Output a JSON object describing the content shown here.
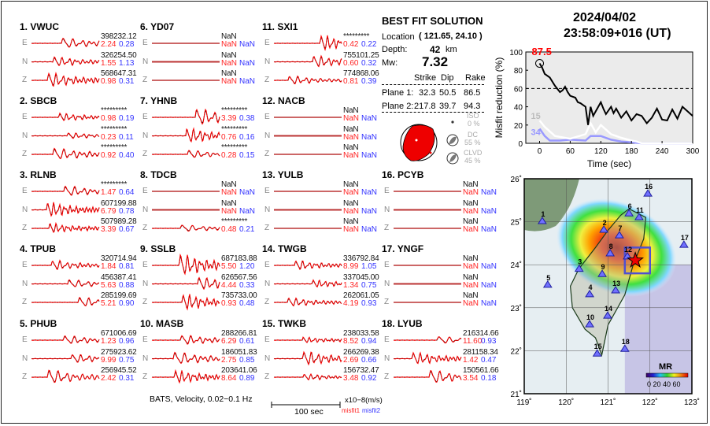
{
  "stations": [
    {
      "label": "1.  VWUC",
      "traces": [
        {
          "comp": "E",
          "amp": "398232.12",
          "m1": "2.24",
          "m2": "0.28"
        },
        {
          "comp": "N",
          "amp": "326254.50",
          "m1": "1.55",
          "m2": "1.13"
        },
        {
          "comp": "Z",
          "amp": "568647.31",
          "m1": "0.98",
          "m2": "0.31"
        }
      ]
    },
    {
      "label": "2.  SBCB",
      "traces": [
        {
          "comp": "E",
          "amp": "*********",
          "m1": "0.98",
          "m2": "0.19"
        },
        {
          "comp": "N",
          "amp": "*********",
          "m1": "0.23",
          "m2": "0.11"
        },
        {
          "comp": "Z",
          "amp": "*********",
          "m1": "0.92",
          "m2": "0.40"
        }
      ]
    },
    {
      "label": "3.  RLNB",
      "traces": [
        {
          "comp": "E",
          "amp": "*********",
          "m1": "1.47",
          "m2": "0.64"
        },
        {
          "comp": "N",
          "amp": "607199.88",
          "m1": "6.79",
          "m2": "0.78"
        },
        {
          "comp": "Z",
          "amp": "507989.28",
          "m1": "3.39",
          "m2": "0.67"
        }
      ]
    },
    {
      "label": "4.  TPUB",
      "traces": [
        {
          "comp": "E",
          "amp": "320714.94",
          "m1": "1.84",
          "m2": "0.81"
        },
        {
          "comp": "N",
          "amp": "456387.41",
          "m1": "5.63",
          "m2": "0.88"
        },
        {
          "comp": "Z",
          "amp": "285199.69",
          "m1": "5.21",
          "m2": "0.90"
        }
      ]
    },
    {
      "label": "5.  PHUB",
      "traces": [
        {
          "comp": "E",
          "amp": "671006.69",
          "m1": "1.23",
          "m2": "0.96"
        },
        {
          "comp": "N",
          "amp": "275923.62",
          "m1": "9.99",
          "m2": "0.75"
        },
        {
          "comp": "Z",
          "amp": "256945.52",
          "m1": "2.42",
          "m2": "0.31"
        }
      ]
    },
    {
      "label": "6.  YD07",
      "traces": [
        {
          "comp": "E",
          "amp": "NaN",
          "m1": "NaN",
          "m2": "NaN"
        },
        {
          "comp": "N",
          "amp": "NaN",
          "m1": "NaN",
          "m2": "NaN"
        },
        {
          "comp": "Z",
          "amp": "NaN",
          "m1": "NaN",
          "m2": "NaN"
        }
      ]
    },
    {
      "label": "7.  YHNB",
      "traces": [
        {
          "comp": "E",
          "amp": "*********",
          "m1": "3.39",
          "m2": "0.38"
        },
        {
          "comp": "N",
          "amp": "*********",
          "m1": "0.76",
          "m2": "0.16"
        },
        {
          "comp": "Z",
          "amp": "*********",
          "m1": "0.28",
          "m2": "0.15"
        }
      ]
    },
    {
      "label": "8.  TDCB",
      "traces": [
        {
          "comp": "E",
          "amp": "NaN",
          "m1": "NaN",
          "m2": "NaN"
        },
        {
          "comp": "N",
          "amp": "NaN",
          "m1": "NaN",
          "m2": "NaN"
        },
        {
          "comp": "Z",
          "amp": "*********",
          "m1": "0.48",
          "m2": "0.21"
        }
      ]
    },
    {
      "label": "9.  SSLB",
      "traces": [
        {
          "comp": "E",
          "amp": "687183.88",
          "m1": "5.50",
          "m2": "1.20"
        },
        {
          "comp": "N",
          "amp": "626567.56",
          "m1": "4.44",
          "m2": "0.33"
        },
        {
          "comp": "Z",
          "amp": "735733.00",
          "m1": "0.93",
          "m2": "0.48"
        }
      ]
    },
    {
      "label": "10. MASB",
      "traces": [
        {
          "comp": "E",
          "amp": "288266.81",
          "m1": "6.29",
          "m2": "0.61"
        },
        {
          "comp": "N",
          "amp": "186051.83",
          "m1": "2.75",
          "m2": "0.85"
        },
        {
          "comp": "Z",
          "amp": "203641.06",
          "m1": "8.64",
          "m2": "0.89"
        }
      ]
    },
    {
      "label": "11. SXI1",
      "traces": [
        {
          "comp": "E",
          "amp": "*********",
          "m1": "0.42",
          "m2": "0.22"
        },
        {
          "comp": "N",
          "amp": "755101.25",
          "m1": "0.60",
          "m2": "0.32"
        },
        {
          "comp": "Z",
          "amp": "774868.06",
          "m1": "0.81",
          "m2": "0.39"
        }
      ]
    },
    {
      "label": "12. NACB",
      "traces": [
        {
          "comp": "E",
          "amp": "NaN",
          "m1": "NaN",
          "m2": "NaN"
        },
        {
          "comp": "N",
          "amp": "NaN",
          "m1": "NaN",
          "m2": "NaN"
        },
        {
          "comp": "Z",
          "amp": "NaN",
          "m1": "NaN",
          "m2": "NaN"
        }
      ]
    },
    {
      "label": "13. YULB",
      "traces": [
        {
          "comp": "E",
          "amp": "NaN",
          "m1": "NaN",
          "m2": "NaN"
        },
        {
          "comp": "N",
          "amp": "NaN",
          "m1": "NaN",
          "m2": "NaN"
        },
        {
          "comp": "Z",
          "amp": "NaN",
          "m1": "NaN",
          "m2": "NaN"
        }
      ]
    },
    {
      "label": "14. TWGB",
      "traces": [
        {
          "comp": "E",
          "amp": "336792.84",
          "m1": "8.99",
          "m2": "1.05"
        },
        {
          "comp": "N",
          "amp": "337045.00",
          "m1": "1.34",
          "m2": "0.75"
        },
        {
          "comp": "Z",
          "amp": "262061.05",
          "m1": "4.19",
          "m2": "0.93"
        }
      ]
    },
    {
      "label": "15. TWKB",
      "traces": [
        {
          "comp": "E",
          "amp": "238033.58",
          "m1": "8.52",
          "m2": "0.94"
        },
        {
          "comp": "N",
          "amp": "266269.38",
          "m1": "2.69",
          "m2": "0.66"
        },
        {
          "comp": "Z",
          "amp": "156732.47",
          "m1": "3.48",
          "m2": "0.92"
        }
      ]
    },
    {
      "label": "16. PCYB",
      "traces": [
        {
          "comp": "E",
          "amp": "NaN",
          "m1": "NaN",
          "m2": "NaN"
        },
        {
          "comp": "N",
          "amp": "NaN",
          "m1": "NaN",
          "m2": "NaN"
        },
        {
          "comp": "Z",
          "amp": "NaN",
          "m1": "NaN",
          "m2": "NaN"
        }
      ]
    },
    {
      "label": "17. YNGF",
      "traces": [
        {
          "comp": "E",
          "amp": "NaN",
          "m1": "NaN",
          "m2": "NaN"
        },
        {
          "comp": "N",
          "amp": "NaN",
          "m1": "NaN",
          "m2": "NaN"
        },
        {
          "comp": "Z",
          "amp": "NaN",
          "m1": "NaN",
          "m2": "NaN"
        }
      ]
    },
    {
      "label": "18. LYUB",
      "traces": [
        {
          "comp": "E",
          "amp": "216314.66",
          "m1": "11.60",
          "m2": "0.93"
        },
        {
          "comp": "N",
          "amp": "281158.34",
          "m1": "1.42",
          "m2": "0.47"
        },
        {
          "comp": "Z",
          "amp": "150561.66",
          "m1": "3.54",
          "m2": "0.18"
        }
      ]
    }
  ],
  "footer": {
    "caption": "BATS, Velocity, 0.02−0.1 Hz",
    "scale_label": "100 sec",
    "units": "x10−8(m/s)",
    "misfit1": "misfit1",
    "misfit2": "misfit2"
  },
  "solution": {
    "title": "BEST FIT SOLUTION",
    "location_label": "Location",
    "location_value": "( 121.65,  24.10 )",
    "depth_label": "Depth:",
    "depth_value": "42",
    "depth_unit": "km",
    "mw_label": "Mw:",
    "mw_value": "7.32",
    "headers": [
      "Strike",
      "Dip",
      "Rake"
    ],
    "planes": [
      {
        "label": "Plane 1:",
        "strike": "32.3",
        "dip": "50.5",
        "rake": "86.5"
      },
      {
        "label": "Plane 2:",
        "strike": "217.8",
        "dip": "39.7",
        "rake": "94.3"
      }
    ],
    "iso_label": "ISO",
    "iso_value": "0  %",
    "dc_label": "DC",
    "dc_value": "55 %",
    "clvd_label": "CLVD",
    "clvd_value": "45 %"
  },
  "event": {
    "date": "2024/04/02",
    "time": "23:58:09+016  (UT)"
  },
  "chart_data": {
    "type": "line",
    "xlabel": "Time (sec)",
    "ylabel": "Misfit reduction (%)",
    "xlim": [
      -27,
      300
    ],
    "ylim": [
      0,
      100
    ],
    "xticks": [
      0,
      60,
      120,
      180,
      240,
      300
    ],
    "yticks": [
      0,
      20,
      40,
      60,
      80,
      100
    ],
    "reference_line": 60,
    "peak_label": "87.5",
    "series": [
      {
        "label": "",
        "color": "#000000",
        "x": [
          0,
          5,
          10,
          20,
          30,
          40,
          45,
          50,
          55,
          60,
          70,
          75,
          80,
          90,
          95,
          100,
          105,
          110,
          120,
          125,
          130,
          140,
          145,
          150,
          160,
          170,
          180,
          190,
          200,
          210,
          220,
          230,
          240,
          250,
          260,
          270,
          280,
          290,
          300
        ],
        "y": [
          87.5,
          83,
          76,
          72,
          63,
          56,
          58,
          62,
          56,
          52,
          50,
          45,
          44,
          40,
          20,
          40,
          30,
          35,
          45,
          38,
          32,
          40,
          33,
          38,
          28,
          35,
          25,
          32,
          30,
          22,
          28,
          38,
          26,
          25,
          37,
          27,
          40,
          35,
          30
        ]
      },
      {
        "label": "15",
        "color": "#ffffff",
        "x": [
          0,
          10,
          30,
          60,
          90,
          100,
          110,
          120,
          130,
          140,
          160,
          180,
          190,
          200,
          300
        ],
        "y": [
          25,
          18,
          8,
          5,
          10,
          22,
          12,
          20,
          15,
          10,
          6,
          3,
          2,
          0,
          0
        ]
      },
      {
        "label": "34",
        "color": "#9999ff",
        "x": [
          0,
          10,
          20,
          40,
          60,
          90,
          100,
          120,
          140,
          160,
          180,
          200,
          300
        ],
        "y": [
          16,
          8,
          3,
          3,
          4,
          3,
          8,
          8,
          4,
          2,
          1,
          0,
          0
        ]
      }
    ]
  },
  "map": {
    "lon_ticks": [
      "119˚",
      "120˚",
      "121˚",
      "122˚",
      "123˚"
    ],
    "lat_ticks": [
      "26˚",
      "25˚",
      "24˚",
      "23˚",
      "22˚",
      "21˚"
    ],
    "epicenter": {
      "lon": 121.65,
      "lat": 24.1
    },
    "colorbar_title": "MR",
    "colorbar_labels": "0 20 40 60",
    "stations": [
      {
        "id": "1",
        "lon": 119.43,
        "lat": 25.01
      },
      {
        "id": "2",
        "lon": 120.9,
        "lat": 24.81
      },
      {
        "id": "3",
        "lon": 120.31,
        "lat": 23.9
      },
      {
        "id": "4",
        "lon": 120.56,
        "lat": 23.31
      },
      {
        "id": "5",
        "lon": 119.56,
        "lat": 23.53
      },
      {
        "id": "6",
        "lon": 121.5,
        "lat": 25.19
      },
      {
        "id": "7",
        "lon": 121.27,
        "lat": 24.68
      },
      {
        "id": "8",
        "lon": 121.05,
        "lat": 24.26
      },
      {
        "id": "9",
        "lon": 120.86,
        "lat": 23.78
      },
      {
        "id": "10",
        "lon": 120.56,
        "lat": 22.61
      },
      {
        "id": "11",
        "lon": 121.74,
        "lat": 25.1
      },
      {
        "id": "12",
        "lon": 121.46,
        "lat": 24.19
      },
      {
        "id": "13",
        "lon": 121.18,
        "lat": 23.4
      },
      {
        "id": "14",
        "lon": 120.99,
        "lat": 22.81
      },
      {
        "id": "15",
        "lon": 120.74,
        "lat": 21.93
      },
      {
        "id": "16",
        "lon": 121.95,
        "lat": 25.65
      },
      {
        "id": "17",
        "lon": 122.81,
        "lat": 24.46
      },
      {
        "id": "18",
        "lon": 121.4,
        "lat": 22.04
      }
    ]
  }
}
